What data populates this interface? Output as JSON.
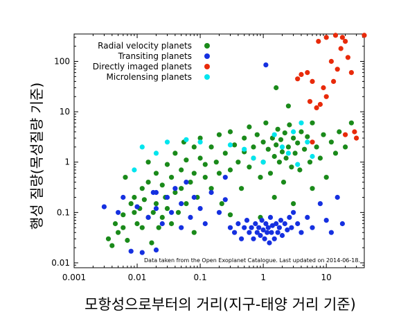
{
  "chart_data": {
    "type": "scatter",
    "xscale": "log",
    "yscale": "log",
    "xlim": [
      0.001,
      40
    ],
    "ylim": [
      0.008,
      350
    ],
    "x_ticks": [
      "0.001",
      "0.01",
      "0.1",
      "1",
      "10"
    ],
    "y_ticks": [
      "0.01",
      "0.1",
      "1",
      "10",
      "100"
    ],
    "xlabel": "모항성으로부터의 거리(지구-태양 거리 기준)",
    "ylabel": "행성 질량(목성질량 기준)",
    "annotation": "Data taken from the Open Exoplanet Catalogue. Last updated on 2014-06-18.",
    "legend_position": "top-left",
    "series": [
      {
        "name": "Radial velocity planets",
        "color": "#1a8a1a",
        "points": [
          [
            0.0035,
            0.03
          ],
          [
            0.004,
            0.022
          ],
          [
            0.0045,
            0.06
          ],
          [
            0.005,
            0.04
          ],
          [
            0.006,
            0.09
          ],
          [
            0.006,
            0.05
          ],
          [
            0.007,
            0.028
          ],
          [
            0.008,
            0.15
          ],
          [
            0.009,
            0.1
          ],
          [
            0.009,
            0.2
          ],
          [
            0.01,
            0.06
          ],
          [
            0.011,
            0.12
          ],
          [
            0.012,
            0.3
          ],
          [
            0.012,
            0.05
          ],
          [
            0.013,
            0.18
          ],
          [
            0.015,
            0.4
          ],
          [
            0.015,
            0.08
          ],
          [
            0.017,
            0.025
          ],
          [
            0.018,
            0.1
          ],
          [
            0.02,
            0.6
          ],
          [
            0.02,
            0.15
          ],
          [
            0.022,
            0.05
          ],
          [
            0.025,
            0.35
          ],
          [
            0.025,
            0.08
          ],
          [
            0.028,
            0.2
          ],
          [
            0.03,
            0.9
          ],
          [
            0.03,
            0.12
          ],
          [
            0.035,
            0.5
          ],
          [
            0.035,
            0.06
          ],
          [
            0.04,
            0.25
          ],
          [
            0.04,
            1.5
          ],
          [
            0.045,
            0.1
          ],
          [
            0.05,
            0.7
          ],
          [
            0.05,
            0.3
          ],
          [
            0.055,
            2.5
          ],
          [
            0.06,
            0.15
          ],
          [
            0.06,
            1.1
          ],
          [
            0.07,
            0.4
          ],
          [
            0.08,
            2.0
          ],
          [
            0.08,
            0.6
          ],
          [
            0.09,
            0.2
          ],
          [
            0.1,
            1.2
          ],
          [
            0.1,
            3.0
          ],
          [
            0.12,
            0.5
          ],
          [
            0.12,
            0.9
          ],
          [
            0.15,
            2.0
          ],
          [
            0.15,
            0.3
          ],
          [
            0.18,
            1.0
          ],
          [
            0.2,
            3.5
          ],
          [
            0.2,
            0.6
          ],
          [
            0.22,
            0.15
          ],
          [
            0.25,
            1.5
          ],
          [
            0.3,
            4.0
          ],
          [
            0.3,
            0.7
          ],
          [
            0.35,
            2.2
          ],
          [
            0.4,
            1.0
          ],
          [
            0.45,
            0.3
          ],
          [
            0.5,
            3.0
          ],
          [
            0.5,
            1.6
          ],
          [
            0.6,
            0.8
          ],
          [
            0.6,
            5.0
          ],
          [
            0.7,
            2.0
          ],
          [
            0.7,
            1.2
          ],
          [
            0.8,
            3.5
          ],
          [
            0.9,
            0.5
          ],
          [
            1.0,
            2.5
          ],
          [
            1.0,
            1.0
          ],
          [
            1.1,
            6.0
          ],
          [
            1.2,
            1.8
          ],
          [
            1.3,
            0.6
          ],
          [
            1.4,
            3.0
          ],
          [
            1.5,
            1.3
          ],
          [
            1.6,
            2.2
          ],
          [
            1.7,
            4.5
          ],
          [
            1.8,
            1.0
          ],
          [
            1.9,
            2.8
          ],
          [
            2.0,
            1.6
          ],
          [
            2.1,
            0.4
          ],
          [
            2.2,
            3.8
          ],
          [
            2.3,
            1.2
          ],
          [
            2.5,
            2.0
          ],
          [
            2.6,
            5.5
          ],
          [
            2.8,
            0.8
          ],
          [
            3.0,
            3.0
          ],
          [
            3.2,
            1.5
          ],
          [
            3.5,
            2.4
          ],
          [
            3.8,
            0.7
          ],
          [
            4.0,
            4.0
          ],
          [
            4.5,
            1.8
          ],
          [
            5.0,
            3.2
          ],
          [
            5.5,
            1.0
          ],
          [
            6.0,
            6.0
          ],
          [
            7.0,
            2.0
          ],
          [
            8.0,
            1.2
          ],
          [
            9.0,
            3.5
          ],
          [
            10.0,
            0.5
          ],
          [
            12.0,
            2.5
          ],
          [
            14.0,
            1.5
          ],
          [
            16.0,
            4.0
          ],
          [
            20.0,
            2.0
          ],
          [
            25.0,
            6.0
          ],
          [
            1.6,
            30.0
          ],
          [
            2.5,
            13.0
          ],
          [
            0.9,
            0.08
          ],
          [
            0.3,
            0.09
          ],
          [
            0.08,
            0.04
          ],
          [
            1.5,
            0.2
          ],
          [
            3.0,
            0.15
          ],
          [
            6.0,
            0.3
          ],
          [
            0.0065,
            0.5
          ],
          [
            0.015,
            1.0
          ]
        ]
      },
      {
        "name": "Transiting planets",
        "color": "#1530e0",
        "points": [
          [
            0.003,
            0.13
          ],
          [
            0.005,
            0.1
          ],
          [
            0.006,
            0.2
          ],
          [
            0.008,
            0.017
          ],
          [
            0.01,
            0.13
          ],
          [
            0.012,
            0.016
          ],
          [
            0.015,
            0.08
          ],
          [
            0.018,
            0.25
          ],
          [
            0.02,
            0.12
          ],
          [
            0.02,
            0.018
          ],
          [
            0.025,
            0.06
          ],
          [
            0.03,
            0.2
          ],
          [
            0.035,
            0.1
          ],
          [
            0.04,
            0.3
          ],
          [
            0.05,
            0.05
          ],
          [
            0.05,
            0.15
          ],
          [
            0.06,
            0.4
          ],
          [
            0.07,
            0.08
          ],
          [
            0.08,
            0.2
          ],
          [
            0.1,
            0.12
          ],
          [
            0.12,
            0.06
          ],
          [
            0.15,
            0.25
          ],
          [
            0.2,
            0.1
          ],
          [
            0.25,
            0.5
          ],
          [
            0.3,
            0.05
          ],
          [
            0.35,
            0.04
          ],
          [
            0.4,
            0.06
          ],
          [
            0.45,
            0.03
          ],
          [
            0.5,
            0.05
          ],
          [
            0.55,
            0.07
          ],
          [
            0.6,
            0.04
          ],
          [
            0.65,
            0.05
          ],
          [
            0.7,
            0.03
          ],
          [
            0.75,
            0.06
          ],
          [
            0.8,
            0.04
          ],
          [
            0.85,
            0.05
          ],
          [
            0.9,
            0.035
          ],
          [
            0.95,
            0.07
          ],
          [
            1.0,
            0.045
          ],
          [
            1.05,
            0.03
          ],
          [
            1.1,
            0.06
          ],
          [
            1.15,
            0.04
          ],
          [
            1.2,
            0.05
          ],
          [
            1.25,
            0.025
          ],
          [
            1.3,
            0.08
          ],
          [
            1.35,
            0.04
          ],
          [
            1.4,
            0.055
          ],
          [
            1.5,
            0.03
          ],
          [
            1.6,
            0.06
          ],
          [
            1.7,
            0.04
          ],
          [
            1.8,
            0.05
          ],
          [
            1.9,
            0.07
          ],
          [
            2.0,
            0.035
          ],
          [
            2.2,
            0.06
          ],
          [
            2.4,
            0.045
          ],
          [
            2.6,
            0.08
          ],
          [
            2.8,
            0.05
          ],
          [
            3.0,
            0.1
          ],
          [
            3.5,
            0.06
          ],
          [
            4.0,
            0.04
          ],
          [
            5.0,
            0.08
          ],
          [
            6.0,
            0.05
          ],
          [
            8.0,
            0.15
          ],
          [
            10.0,
            0.07
          ],
          [
            12.0,
            0.04
          ],
          [
            15.0,
            0.2
          ],
          [
            18.0,
            0.06
          ],
          [
            1.1,
            85.0
          ],
          [
            0.02,
            0.25
          ],
          [
            0.25,
            0.18
          ]
        ]
      },
      {
        "name": "Directly imaged planets",
        "color": "#e82a0a",
        "points": [
          [
            3.5,
            45.0
          ],
          [
            4.0,
            55.0
          ],
          [
            5.0,
            60.0
          ],
          [
            6.0,
            40.0
          ],
          [
            5.5,
            16.0
          ],
          [
            7.0,
            12.0
          ],
          [
            8.0,
            14.0
          ],
          [
            9.0,
            30.0
          ],
          [
            10.0,
            20.0
          ],
          [
            12.0,
            100.0
          ],
          [
            13.0,
            40.0
          ],
          [
            15.0,
            70.0
          ],
          [
            17.0,
            180.0
          ],
          [
            18.0,
            300.0
          ],
          [
            20.0,
            250.0
          ],
          [
            22.0,
            120.0
          ],
          [
            25.0,
            60.0
          ],
          [
            14.0,
            330.0
          ],
          [
            28.0,
            4.0
          ],
          [
            30.0,
            3.0
          ],
          [
            10.0,
            300.0
          ],
          [
            40.0,
            330.0
          ],
          [
            7.5,
            250.0
          ],
          [
            20.0,
            3.5
          ],
          [
            6.0,
            2.5
          ]
        ]
      },
      {
        "name": "Microlensing planets",
        "color": "#00e5ee",
        "points": [
          [
            0.009,
            0.7
          ],
          [
            0.012,
            2.0
          ],
          [
            0.02,
            1.5
          ],
          [
            0.03,
            2.5
          ],
          [
            0.06,
            2.8
          ],
          [
            0.1,
            2.5
          ],
          [
            0.3,
            2.2
          ],
          [
            0.5,
            1.8
          ],
          [
            0.7,
            1.2
          ],
          [
            1.0,
            1.0
          ],
          [
            1.5,
            3.5
          ],
          [
            2.0,
            2.0
          ],
          [
            2.5,
            1.5
          ],
          [
            3.0,
            4.0
          ],
          [
            3.5,
            0.9
          ],
          [
            4.0,
            6.0
          ],
          [
            5.0,
            2.5
          ],
          [
            6.0,
            1.3
          ]
        ]
      }
    ]
  }
}
